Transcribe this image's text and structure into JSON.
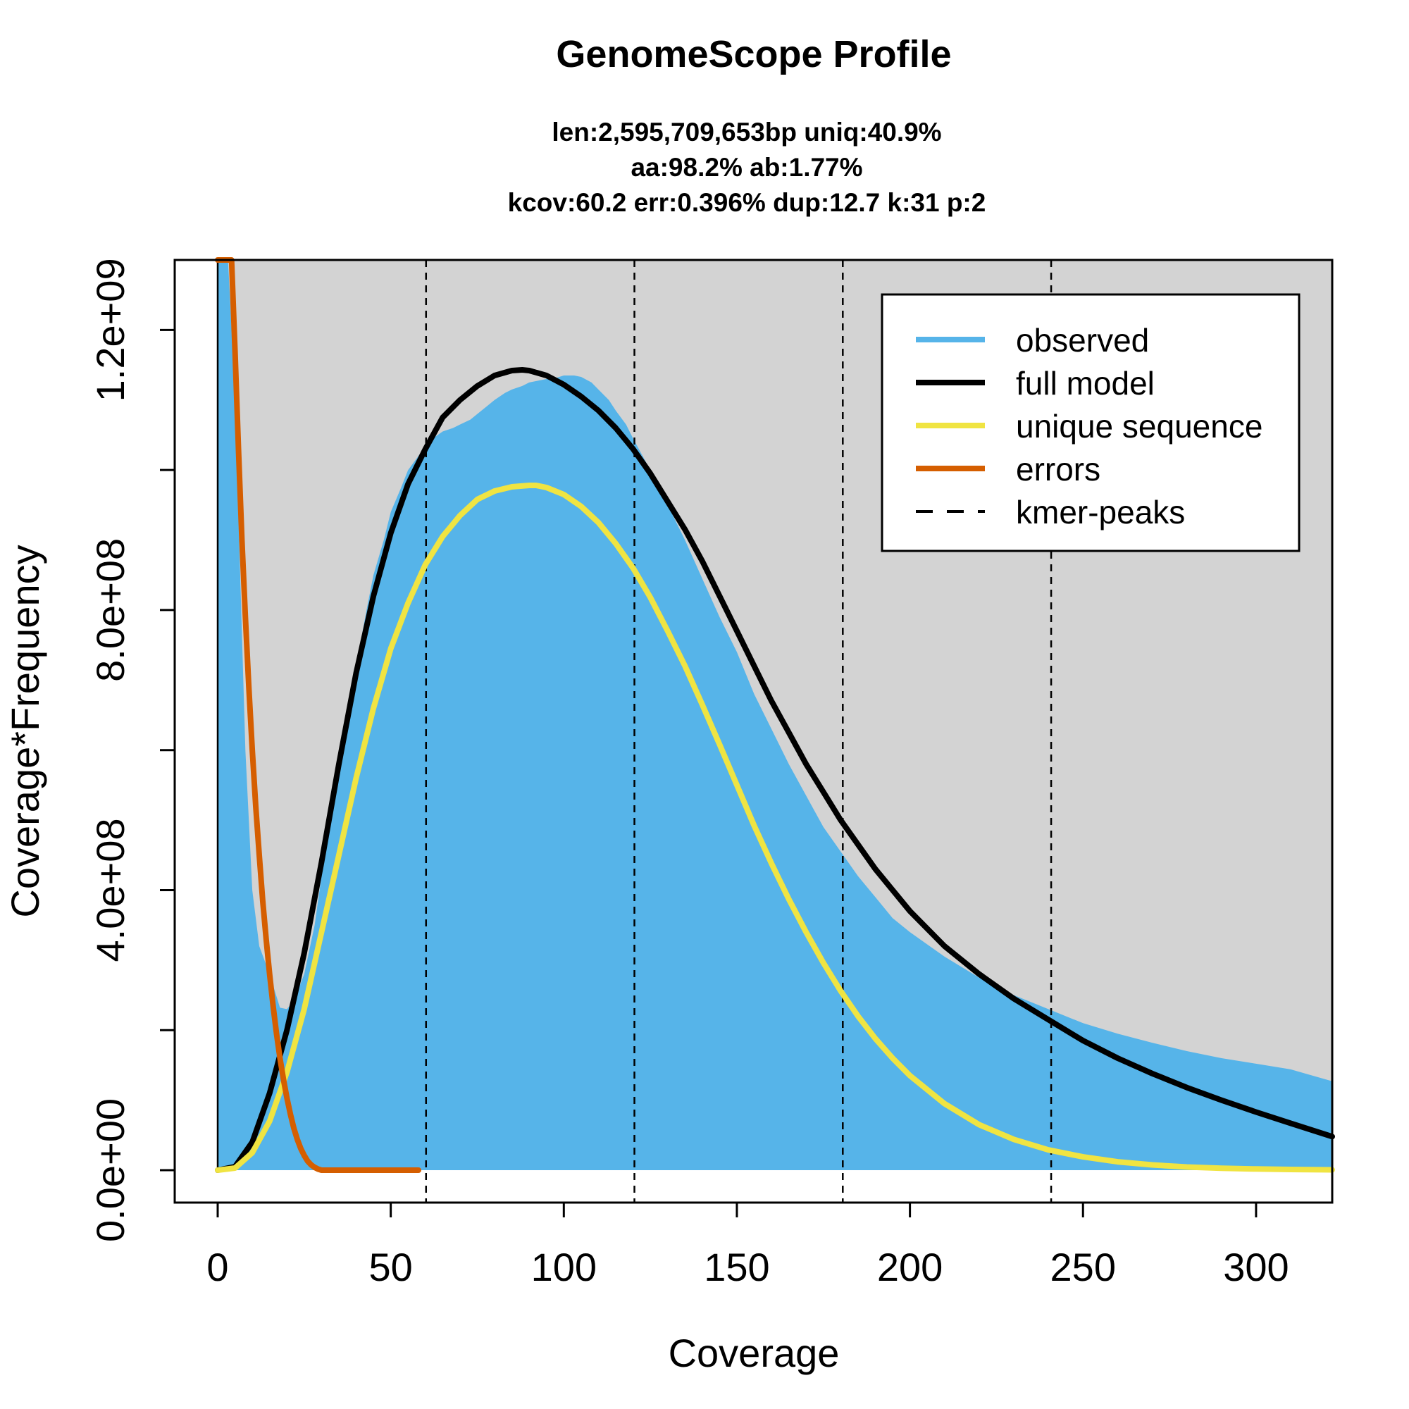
{
  "chart_data": {
    "type": "area",
    "title": "GenomeScope Profile",
    "subtitle_lines": [
      "len:2,595,709,653bp uniq:40.9%",
      "aa:98.2% ab:1.77%",
      "kcov:60.2 err:0.396%  dup:12.7  k:31 p:2"
    ],
    "xlabel": "Coverage",
    "ylabel": "Coverage*Frequency",
    "xlim": [
      0,
      322
    ],
    "ylim": [
      0,
      1300000000
    ],
    "x_ticks": [
      0,
      50,
      100,
      150,
      200,
      250,
      300
    ],
    "x_tick_labels": [
      "0",
      "50",
      "100",
      "150",
      "200",
      "250",
      "300"
    ],
    "y_ticks": [
      0,
      200000000,
      400000000,
      600000000,
      800000000,
      1000000000,
      1200000000
    ],
    "y_tick_labels": [
      "0.0e+00",
      "",
      "4.0e+08",
      "",
      "8.0e+08",
      "",
      "1.2e+09"
    ],
    "grid": false,
    "legend_position": "top-right",
    "legend": [
      {
        "label": "observed",
        "style": "solid",
        "color": "#56B4E9"
      },
      {
        "label": "full model",
        "style": "solid",
        "color": "#000000"
      },
      {
        "label": "unique sequence",
        "style": "solid",
        "color": "#F0E442"
      },
      {
        "label": "errors",
        "style": "solid",
        "color": "#D55E00"
      },
      {
        "label": "kmer-peaks",
        "style": "dashed",
        "color": "#000000"
      }
    ],
    "kmer_peaks": [
      60.2,
      120.4,
      180.6,
      240.8
    ],
    "series": [
      {
        "name": "observed",
        "color": "#56B4E9",
        "x": [
          0,
          1,
          2,
          3,
          5,
          8,
          10,
          12,
          15,
          18,
          20,
          22,
          25,
          28,
          30,
          33,
          35,
          38,
          40,
          43,
          45,
          48,
          50,
          53,
          55,
          58,
          60,
          63,
          65,
          68,
          70,
          73,
          75,
          78,
          80,
          83,
          85,
          88,
          90,
          93,
          95,
          98,
          100,
          103,
          105,
          108,
          110,
          113,
          115,
          118,
          120,
          125,
          130,
          135,
          140,
          145,
          150,
          155,
          160,
          165,
          170,
          175,
          180,
          185,
          190,
          195,
          200,
          210,
          220,
          230,
          240,
          250,
          260,
          270,
          280,
          290,
          300,
          310,
          322
        ],
        "values": [
          1300000000,
          1300000000,
          1300000000,
          1300000000,
          1100000000,
          600000000,
          400000000,
          320000000,
          280000000,
          232000000,
          230000000,
          242000000,
          280000000,
          350000000,
          420000000,
          510000000,
          580000000,
          660000000,
          720000000,
          800000000,
          850000000,
          900000000,
          940000000,
          975000000,
          1000000000,
          1020000000,
          1035000000,
          1048000000,
          1055000000,
          1060000000,
          1065000000,
          1072000000,
          1080000000,
          1092000000,
          1100000000,
          1110000000,
          1115000000,
          1120000000,
          1125000000,
          1128000000,
          1130000000,
          1132000000,
          1135000000,
          1135000000,
          1133000000,
          1125000000,
          1115000000,
          1100000000,
          1085000000,
          1065000000,
          1045000000,
          1000000000,
          950000000,
          900000000,
          845000000,
          790000000,
          740000000,
          680000000,
          630000000,
          580000000,
          535000000,
          490000000,
          455000000,
          420000000,
          390000000,
          360000000,
          340000000,
          305000000,
          275000000,
          250000000,
          230000000,
          210000000,
          195000000,
          182000000,
          170000000,
          160000000,
          152000000,
          144000000,
          127000000
        ]
      },
      {
        "name": "full model",
        "color": "#000000",
        "x": [
          0,
          5,
          10,
          15,
          20,
          25,
          30,
          35,
          40,
          45,
          50,
          55,
          60,
          65,
          70,
          75,
          80,
          85,
          88,
          90,
          95,
          100,
          105,
          110,
          115,
          120,
          125,
          130,
          135,
          140,
          145,
          150,
          155,
          160,
          165,
          170,
          175,
          180,
          190,
          200,
          210,
          220,
          230,
          240,
          250,
          260,
          270,
          280,
          290,
          300,
          310,
          322
        ],
        "values": [
          0,
          5000000,
          40000000,
          110000000,
          200000000,
          310000000,
          440000000,
          580000000,
          710000000,
          820000000,
          910000000,
          980000000,
          1030000000,
          1075000000,
          1100000000,
          1120000000,
          1135000000,
          1142000000,
          1143000000,
          1142000000,
          1135000000,
          1122000000,
          1105000000,
          1085000000,
          1060000000,
          1030000000,
          995000000,
          955000000,
          915000000,
          870000000,
          820000000,
          770000000,
          720000000,
          670000000,
          625000000,
          580000000,
          540000000,
          500000000,
          430000000,
          370000000,
          320000000,
          280000000,
          245000000,
          215000000,
          185000000,
          160000000,
          138000000,
          118000000,
          100000000,
          83000000,
          67000000,
          48000000
        ]
      },
      {
        "name": "unique sequence",
        "color": "#F0E442",
        "x": [
          0,
          5,
          10,
          15,
          20,
          25,
          30,
          35,
          40,
          45,
          50,
          55,
          60,
          65,
          70,
          75,
          80,
          85,
          90,
          92,
          95,
          100,
          105,
          110,
          115,
          120,
          125,
          130,
          135,
          140,
          145,
          150,
          155,
          160,
          165,
          170,
          175,
          180,
          185,
          190,
          195,
          200,
          210,
          220,
          230,
          240,
          250,
          260,
          270,
          280,
          290,
          300,
          310,
          322
        ],
        "values": [
          0,
          3000000,
          25000000,
          70000000,
          140000000,
          230000000,
          340000000,
          450000000,
          560000000,
          660000000,
          745000000,
          810000000,
          865000000,
          905000000,
          935000000,
          958000000,
          970000000,
          976000000,
          978000000,
          978000000,
          975000000,
          965000000,
          948000000,
          925000000,
          895000000,
          860000000,
          818000000,
          770000000,
          720000000,
          665000000,
          608000000,
          550000000,
          492000000,
          438000000,
          387000000,
          340000000,
          296000000,
          256000000,
          220000000,
          188000000,
          160000000,
          135000000,
          95000000,
          65000000,
          44000000,
          29000000,
          19000000,
          12000000,
          7500000,
          4500000,
          2800000,
          1700000,
          1000000,
          500000
        ]
      },
      {
        "name": "errors",
        "color": "#D55E00",
        "x": [
          0,
          4,
          5,
          6,
          7,
          8,
          9,
          10,
          11,
          12,
          13,
          14,
          15,
          16,
          17,
          18,
          19,
          20,
          21,
          22,
          23,
          24,
          25,
          26,
          27,
          28,
          29,
          30,
          35,
          40,
          45,
          50,
          55,
          58
        ],
        "values": [
          1300000000,
          1300000000,
          1170000000,
          1030000000,
          900000000,
          790000000,
          690000000,
          600000000,
          520000000,
          450000000,
          385000000,
          330000000,
          280000000,
          235000000,
          195000000,
          160000000,
          130000000,
          103000000,
          80000000,
          60000000,
          44000000,
          31000000,
          21000000,
          13000000,
          7500000,
          4000000,
          1500000,
          0,
          0,
          0,
          0,
          0,
          0,
          0
        ]
      }
    ]
  }
}
